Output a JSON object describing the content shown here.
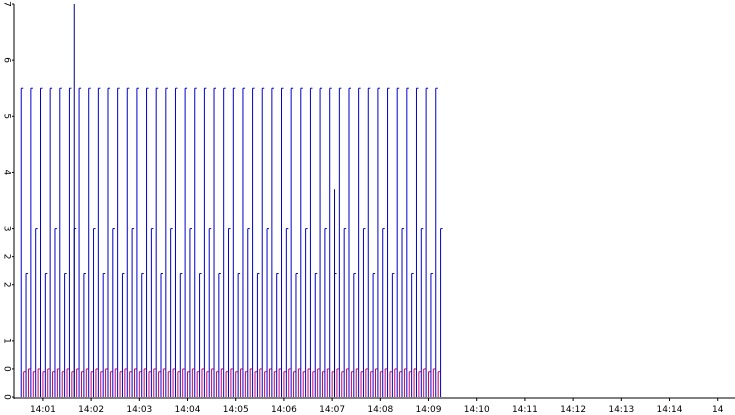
{
  "chart_data": {
    "type": "line",
    "x_tick_labels": [
      "14:01",
      "14:02",
      "14:03",
      "14:04",
      "14:05",
      "14:06",
      "14:07",
      "14:08",
      "14:09",
      "14:10",
      "14:11",
      "14:12",
      "14:13",
      "14:14",
      "14"
    ],
    "y_tick_labels": [
      "0",
      "0",
      "1",
      "2",
      "2",
      "3",
      "4",
      "5",
      "6",
      "7"
    ],
    "x_range_minutes": [
      840.4,
      855.0
    ],
    "y_range": [
      0,
      7
    ],
    "grid": false,
    "legend": "none",
    "series": [
      {
        "color": "#0000cc",
        "pulse_start_minute": 840.55,
        "pulse_end_minute": 849.25,
        "pulse_spacing_minutes": 0.1,
        "pulse_heights": [
          5.5,
          2.2,
          5.5,
          3.0
        ],
        "spikes": [
          {
            "minute": 841.65,
            "value": 7.0
          },
          {
            "minute": 847.05,
            "value": 3.7
          }
        ]
      },
      {
        "color": "#cc0066",
        "pulse_start_minute": 840.6,
        "pulse_end_minute": 849.25,
        "pulse_spacing_minutes": 0.1,
        "pulse_heights": [
          0.45,
          0.5,
          0.45,
          0.5
        ]
      }
    ],
    "colors": {
      "axis": "#000000",
      "primary": "#0000cc",
      "secondary": "#cc0066",
      "background": "#ffffff"
    }
  }
}
